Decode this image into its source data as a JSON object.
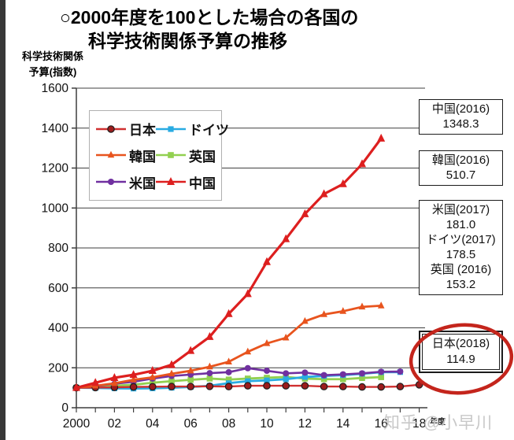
{
  "page": {
    "title_line1": "○2000年度を100とした場合の各国の",
    "title_line2": "科学技術関係予算の推移",
    "ylabel_line1": "科学技術関係",
    "ylabel_line2": "予算(指数)",
    "xaxis_unit": "年度",
    "watermark": "知乎 @小早川"
  },
  "chart_data": {
    "type": "line",
    "title": "2000年度を100とした場合の各国の科学技術関係予算の推移",
    "ylabel": "科学技術関係予算(指数)",
    "xlabel": "年度",
    "ylim": [
      0,
      1600
    ],
    "yticks": [
      0,
      200,
      400,
      600,
      800,
      1000,
      1200,
      1400,
      1600
    ],
    "x_start_year": 2000,
    "x_end_year": 2018,
    "xtick_labels": [
      "2000",
      "02",
      "04",
      "06",
      "08",
      "10",
      "12",
      "14",
      "16",
      "18"
    ],
    "grid": true,
    "legend_position": "upper-left-inside",
    "colors": {
      "grid": "#3f3f3f",
      "axis": "#3f3f3f",
      "annotation_ellipse": "#c4251c"
    },
    "series": [
      {
        "name": "日本",
        "color": "#d03030",
        "marker": "circle",
        "marker_fill": "#9b1c1c",
        "marker_edge": "#1f1f1f",
        "start_year": 2000,
        "values": [
          100,
          101,
          102,
          104,
          105,
          106,
          106,
          107,
          106,
          110,
          110,
          110,
          110,
          106,
          106,
          104,
          104,
          106,
          114.9
        ]
      },
      {
        "name": "ドイツ",
        "color": "#29abe2",
        "marker": "square",
        "start_year": 2000,
        "values": [
          100,
          99,
          97,
          96,
          97,
          100,
          104,
          110,
          123,
          133,
          137,
          143,
          154,
          159,
          163,
          170,
          178,
          178.5
        ]
      },
      {
        "name": "韓国",
        "color": "#e8541e",
        "marker": "triangle",
        "start_year": 2000,
        "values": [
          100,
          110,
          122,
          140,
          152,
          170,
          185,
          205,
          230,
          280,
          322,
          350,
          433,
          467,
          483,
          505,
          510.7
        ]
      },
      {
        "name": "英国",
        "color": "#92d050",
        "marker": "square",
        "start_year": 2000,
        "values": [
          100,
          105,
          110,
          115,
          125,
          133,
          140,
          146,
          141,
          146,
          150,
          154,
          146,
          143,
          143,
          149,
          153.2
        ]
      },
      {
        "name": "米国",
        "color": "#7030a0",
        "marker": "circle",
        "start_year": 2000,
        "values": [
          100,
          108,
          120,
          130,
          146,
          159,
          166,
          173,
          178,
          198,
          185,
          172,
          176,
          163,
          167,
          172,
          180,
          181
        ]
      },
      {
        "name": "中国",
        "color": "#dd1f1f",
        "marker": "triangle",
        "start_year": 2000,
        "values": [
          100,
          125,
          150,
          165,
          185,
          215,
          285,
          355,
          470,
          570,
          730,
          845,
          970,
          1070,
          1120,
          1220,
          1348.3
        ]
      }
    ]
  },
  "callouts": [
    {
      "line1": "中国(2016)",
      "line2": "1348.3"
    },
    {
      "line1": "韓国(2016)",
      "line2": "510.7"
    },
    {
      "lines": [
        "米国(2017)",
        "181.0",
        "ドイツ(2017)",
        "178.5",
        "英国 (2016)",
        "153.2"
      ]
    },
    {
      "line1": "日本(2018)",
      "line2": "114.9"
    }
  ]
}
